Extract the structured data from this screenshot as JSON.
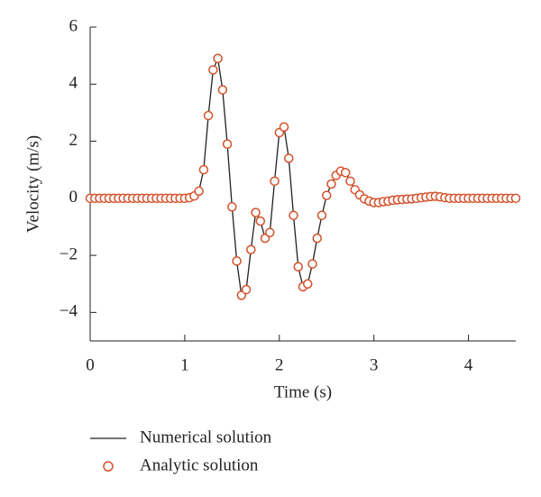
{
  "chart_data": {
    "type": "line",
    "x_label": "Time (s)",
    "y_label": "Velocity (m/s)",
    "xlim": [
      0,
      4.5
    ],
    "ylim": [
      -5,
      6
    ],
    "xticks": [
      0,
      1,
      2,
      3,
      4
    ],
    "yticks": [
      {
        "value": -4,
        "label": "−4"
      },
      {
        "value": -2,
        "label": "−2"
      },
      0,
      2,
      4,
      6
    ],
    "x": [
      0,
      0.05,
      0.1,
      0.15,
      0.2,
      0.25,
      0.3,
      0.35,
      0.4,
      0.45,
      0.5,
      0.55,
      0.6,
      0.65,
      0.7,
      0.75,
      0.8,
      0.85,
      0.9,
      0.95,
      1,
      1.05,
      1.1,
      1.15,
      1.2,
      1.25,
      1.3,
      1.35,
      1.4,
      1.45,
      1.5,
      1.55,
      1.6,
      1.65,
      1.7,
      1.75,
      1.8,
      1.85,
      1.9,
      1.95,
      2,
      2.05,
      2.1,
      2.15,
      2.2,
      2.25,
      2.3,
      2.35,
      2.4,
      2.45,
      2.5,
      2.55,
      2.6,
      2.65,
      2.7,
      2.75,
      2.8,
      2.85,
      2.9,
      2.95,
      3,
      3.05,
      3.1,
      3.15,
      3.2,
      3.25,
      3.3,
      3.35,
      3.4,
      3.45,
      3.5,
      3.55,
      3.6,
      3.65,
      3.7,
      3.75,
      3.8,
      3.85,
      3.9,
      3.95,
      4,
      4.05,
      4.1,
      4.15,
      4.2,
      4.25,
      4.3,
      4.35,
      4.4,
      4.45,
      4.5
    ],
    "series": [
      {
        "name": "Numerical solution",
        "color": "#222222",
        "style": "line",
        "values": [
          0,
          0,
          0,
          0,
          0,
          0,
          0,
          0,
          0,
          0,
          0,
          0,
          0,
          0,
          0,
          0,
          0,
          0,
          0,
          0,
          0,
          0.02,
          0.08,
          0.25,
          1.0,
          2.9,
          4.5,
          4.9,
          3.8,
          1.9,
          -0.3,
          -2.2,
          -3.4,
          -3.2,
          -1.8,
          -0.5,
          -0.8,
          -1.4,
          -1.2,
          0.6,
          2.3,
          2.5,
          1.4,
          -0.6,
          -2.4,
          -3.1,
          -3.0,
          -2.3,
          -1.4,
          -0.6,
          0.1,
          0.5,
          0.8,
          0.95,
          0.9,
          0.6,
          0.3,
          0.12,
          -0.02,
          -0.1,
          -0.15,
          -0.15,
          -0.12,
          -0.1,
          -0.07,
          -0.05,
          -0.04,
          -0.03,
          -0.02,
          0,
          0.02,
          0.04,
          0.06,
          0.07,
          0.05,
          0.02,
          0,
          0,
          0,
          0,
          0,
          0,
          0,
          0,
          0,
          0,
          0,
          0,
          0,
          0,
          0
        ]
      },
      {
        "name": "Analytic solution",
        "color": "#d4502a",
        "style": "markers",
        "values": [
          0,
          0,
          0,
          0,
          0,
          0,
          0,
          0,
          0,
          0,
          0,
          0,
          0,
          0,
          0,
          0,
          0,
          0,
          0,
          0,
          0,
          0.02,
          0.08,
          0.25,
          1.0,
          2.9,
          4.5,
          4.9,
          3.8,
          1.9,
          -0.3,
          -2.2,
          -3.4,
          -3.2,
          -1.8,
          -0.5,
          -0.8,
          -1.4,
          -1.2,
          0.6,
          2.3,
          2.5,
          1.4,
          -0.6,
          -2.4,
          -3.1,
          -3.0,
          -2.3,
          -1.4,
          -0.6,
          0.1,
          0.5,
          0.8,
          0.95,
          0.9,
          0.6,
          0.3,
          0.12,
          -0.02,
          -0.1,
          -0.15,
          -0.15,
          -0.12,
          -0.1,
          -0.07,
          -0.05,
          -0.04,
          -0.03,
          -0.02,
          0,
          0.02,
          0.04,
          0.06,
          0.07,
          0.05,
          0.02,
          0,
          0,
          0,
          0,
          0,
          0,
          0,
          0,
          0,
          0,
          0,
          0,
          0,
          0,
          0
        ]
      }
    ]
  }
}
